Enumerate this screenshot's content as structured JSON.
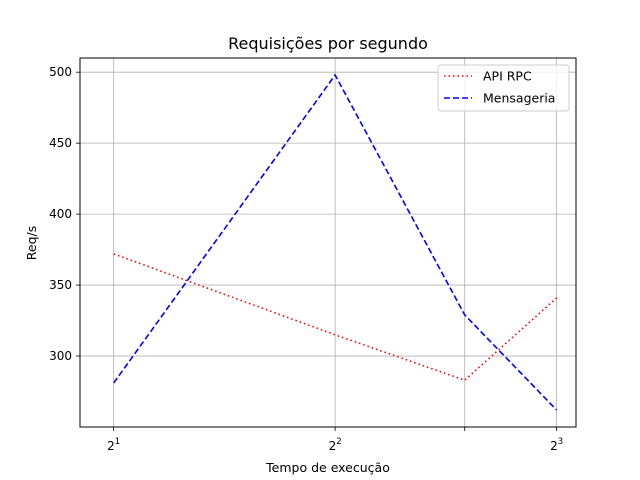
{
  "chart_data": {
    "type": "line",
    "title": "Requisições por segundo",
    "xlabel": "Tempo de execução",
    "ylabel": "Req/s",
    "x_scale": "log2",
    "x": [
      2,
      4,
      6,
      8
    ],
    "xlim": [
      1.8,
      8.5
    ],
    "ylim": [
      250,
      510
    ],
    "x_ticks": [
      {
        "value": 2,
        "base": "2",
        "exp": "1"
      },
      {
        "value": 4,
        "base": "2",
        "exp": "2"
      },
      {
        "value": 6,
        "base": "",
        "exp": ""
      },
      {
        "value": 8,
        "base": "2",
        "exp": "3"
      }
    ],
    "y_ticks": [
      300,
      350,
      400,
      450,
      500
    ],
    "grid": true,
    "legend_position": "top-right",
    "series": [
      {
        "name": "API RPC",
        "values": [
          372,
          315,
          283,
          341
        ],
        "color": "#ff0000",
        "style": "dotted"
      },
      {
        "name": "Mensageria",
        "values": [
          281,
          498,
          329,
          262
        ],
        "color": "#0000ff",
        "style": "dashed"
      }
    ]
  }
}
